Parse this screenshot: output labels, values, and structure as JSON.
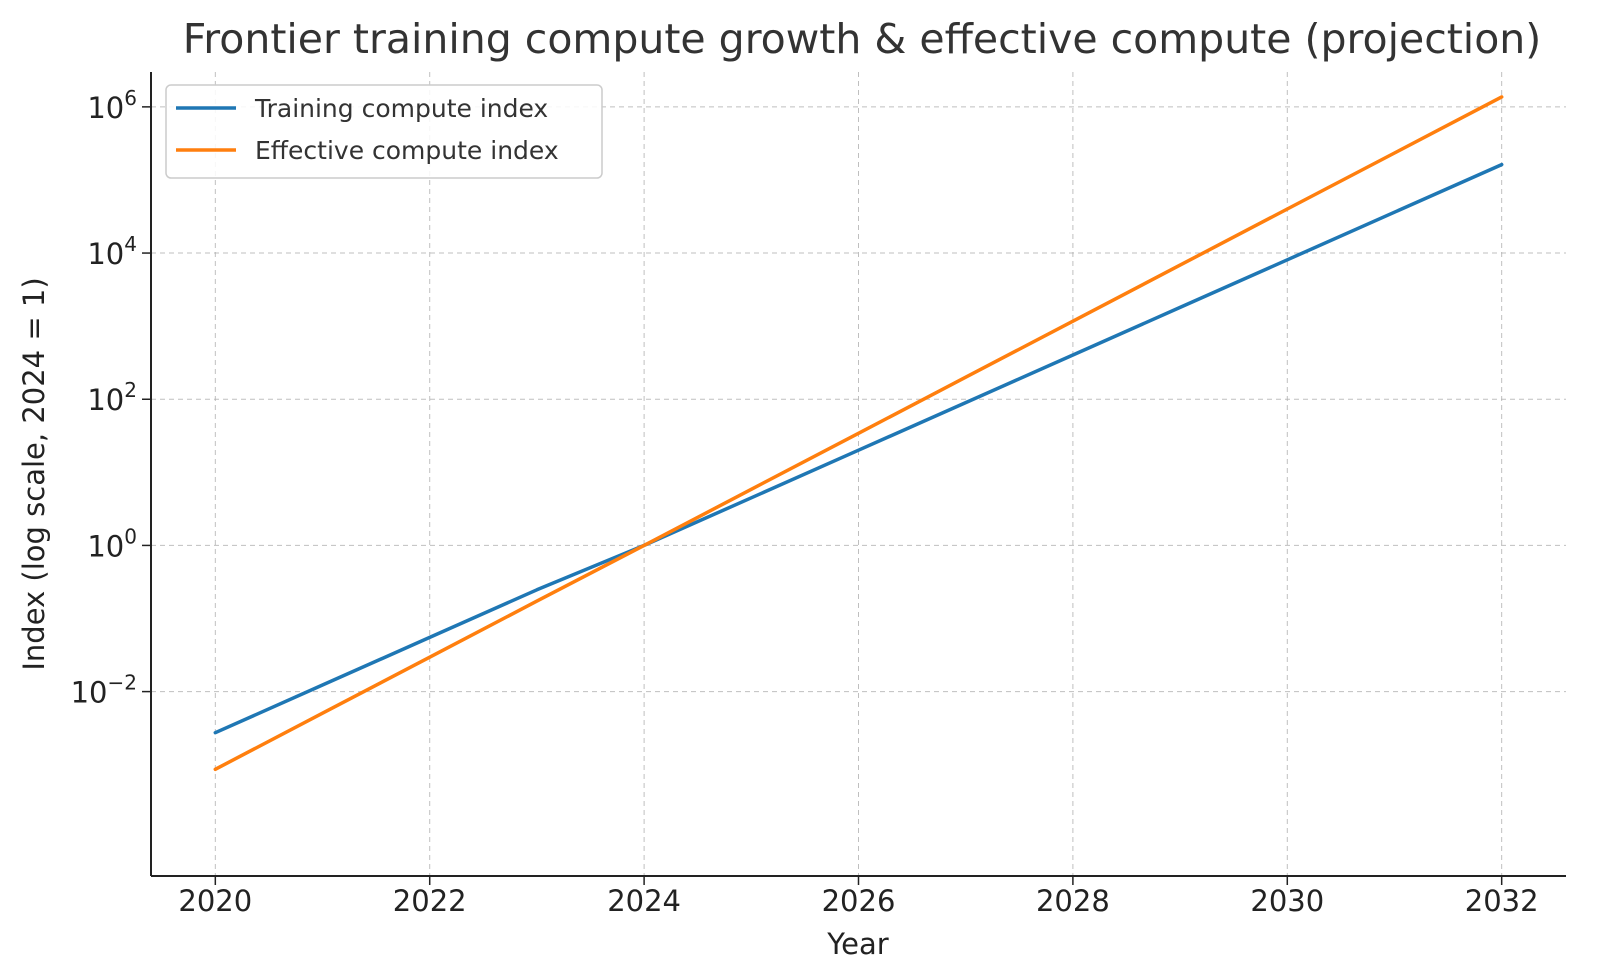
{
  "chart_data": {
    "type": "line",
    "title": "Frontier training compute growth & effective compute (projection)",
    "xlabel": "Year",
    "ylabel": "Index (log scale, 2024 = 1)",
    "yscale": "log",
    "x": [
      2020,
      2021,
      2022,
      2023,
      2024,
      2025,
      2026,
      2027,
      2028,
      2029,
      2030,
      2031,
      2032
    ],
    "xlim": [
      2019.4,
      2032.6
    ],
    "ylim": [
      3e-05,
      3000000
    ],
    "xticks": [
      2020,
      2022,
      2024,
      2026,
      2028,
      2030,
      2032
    ],
    "xtick_labels": [
      "2020",
      "2022",
      "2024",
      "2026",
      "2028",
      "2030",
      "2032"
    ],
    "yticks": [
      0.01,
      1,
      100,
      10000,
      1000000
    ],
    "ytick_labels": [
      {
        "base": "10",
        "exp": "−2"
      },
      {
        "base": "10",
        "exp": "0"
      },
      {
        "base": "10",
        "exp": "2"
      },
      {
        "base": "10",
        "exp": "4"
      },
      {
        "base": "10",
        "exp": "6"
      }
    ],
    "grid": true,
    "legend_position": "top-left",
    "series": [
      {
        "name": "Training compute index",
        "color": "#1f77b4",
        "values": [
          0.00274,
          0.0123,
          0.0552,
          0.247,
          1,
          4.48,
          20.1,
          90.0,
          403,
          1806,
          8091,
          36255,
          162434
        ]
      },
      {
        "name": "Effective compute index",
        "color": "#ff7f0e",
        "values": [
          0.000866,
          0.00506,
          0.0296,
          0.173,
          1,
          5.85,
          34.2,
          200,
          1170,
          6841,
          40002,
          233907,
          1367762
        ]
      }
    ]
  }
}
